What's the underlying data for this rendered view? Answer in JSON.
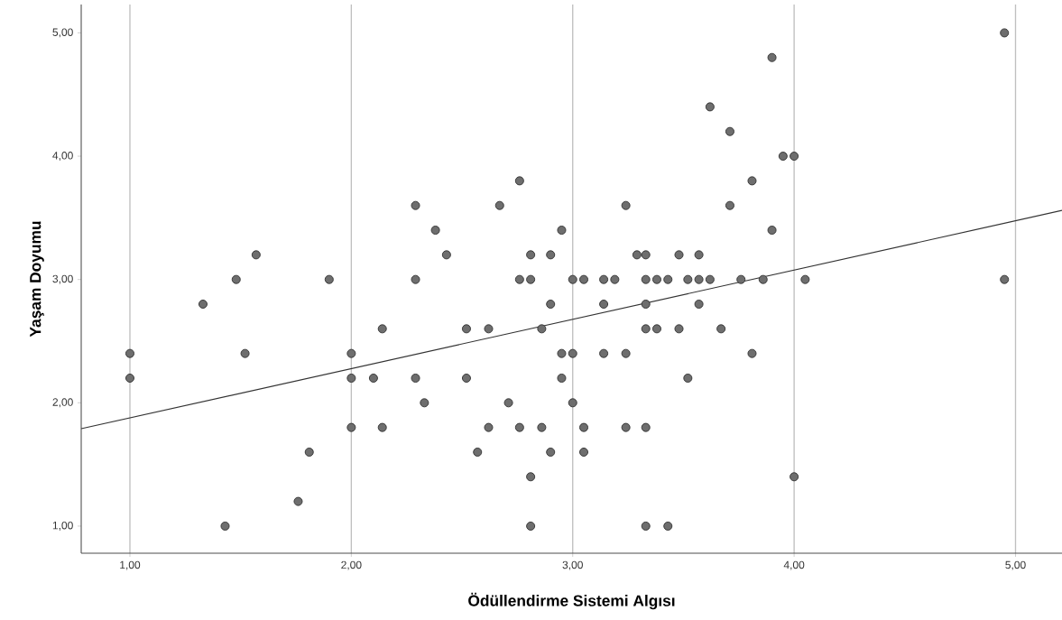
{
  "chart_data": {
    "type": "scatter",
    "xlabel": "Ödüllendirme Sistemi Algısı",
    "ylabel": "Yaşam Doyumu",
    "xlim": [
      0.78,
      5.21
    ],
    "ylim": [
      0.78,
      5.23
    ],
    "xticks": [
      {
        "value": 1,
        "label": "1,00"
      },
      {
        "value": 2,
        "label": "2,00"
      },
      {
        "value": 3,
        "label": "3,00"
      },
      {
        "value": 4,
        "label": "4,00"
      },
      {
        "value": 5,
        "label": "5,00"
      }
    ],
    "yticks": [
      {
        "value": 1,
        "label": "1,00"
      },
      {
        "value": 2,
        "label": "2,00"
      },
      {
        "value": 3,
        "label": "3,00"
      },
      {
        "value": 4,
        "label": "4,00"
      },
      {
        "value": 5,
        "label": "5,00"
      }
    ],
    "grid": "x",
    "series": [
      {
        "marker": "circle",
        "color": "#6e6e6e",
        "x": [
          1.0,
          1.0,
          1.33,
          1.43,
          1.48,
          1.52,
          1.57,
          1.76,
          1.81,
          1.9,
          2.0,
          2.0,
          2.0,
          2.1,
          2.14,
          2.14,
          2.29,
          2.29,
          2.29,
          2.33,
          2.38,
          2.43,
          2.52,
          2.52,
          2.57,
          2.62,
          2.62,
          2.67,
          2.71,
          2.76,
          2.76,
          2.76,
          2.81,
          2.81,
          2.81,
          2.81,
          2.86,
          2.86,
          2.9,
          2.9,
          2.9,
          2.95,
          2.95,
          2.95,
          3.0,
          3.0,
          3.0,
          3.05,
          3.05,
          3.05,
          3.14,
          3.14,
          3.14,
          3.19,
          3.24,
          3.24,
          3.24,
          3.29,
          3.33,
          3.33,
          3.33,
          3.33,
          3.33,
          3.33,
          3.38,
          3.38,
          3.43,
          3.43,
          3.48,
          3.48,
          3.52,
          3.52,
          3.57,
          3.57,
          3.57,
          3.62,
          3.62,
          3.67,
          3.71,
          3.71,
          3.76,
          3.81,
          3.81,
          3.86,
          3.9,
          3.9,
          3.95,
          4.0,
          4.0,
          4.05,
          4.95,
          4.95
        ],
        "values": [
          2.4,
          2.2,
          2.8,
          1.0,
          3.0,
          2.4,
          3.2,
          1.2,
          1.6,
          3.0,
          2.4,
          2.2,
          1.8,
          2.2,
          2.6,
          1.8,
          3.6,
          3.0,
          2.2,
          2.0,
          3.4,
          3.2,
          2.6,
          2.2,
          1.6,
          2.6,
          1.8,
          3.6,
          2.0,
          3.8,
          3.0,
          1.8,
          3.2,
          3.0,
          1.4,
          1.0,
          2.6,
          1.8,
          3.2,
          2.8,
          1.6,
          3.4,
          2.4,
          2.2,
          3.0,
          2.4,
          2.0,
          3.0,
          1.8,
          1.6,
          3.0,
          2.8,
          2.4,
          3.0,
          3.6,
          2.4,
          1.8,
          3.2,
          3.2,
          3.0,
          2.8,
          2.6,
          1.8,
          1.0,
          3.0,
          2.6,
          3.0,
          1.0,
          3.2,
          2.6,
          3.0,
          2.2,
          3.2,
          3.0,
          2.8,
          4.4,
          3.0,
          2.6,
          4.2,
          3.6,
          3.0,
          3.8,
          2.4,
          3.0,
          4.8,
          3.4,
          4.0,
          4.0,
          1.4,
          3.0,
          5.0,
          3.0
        ]
      },
      {
        "type": "line",
        "marker": "none",
        "line_style": "solid",
        "color": "#333333",
        "x": [
          0.78,
          5.21
        ],
        "values": [
          1.79,
          3.56
        ]
      }
    ]
  }
}
